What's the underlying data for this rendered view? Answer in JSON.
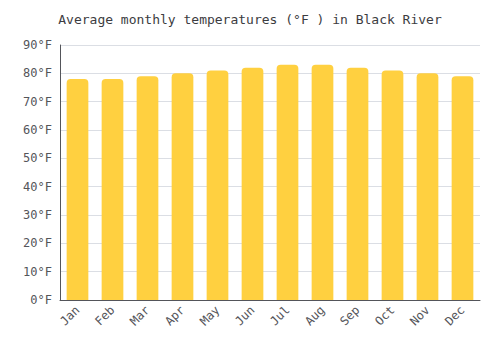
{
  "chart_data": {
    "type": "bar",
    "title": "Average monthly temperatures (°F ) in Black River",
    "categories": [
      "Jan",
      "Feb",
      "Mar",
      "Apr",
      "May",
      "Jun",
      "Jul",
      "Aug",
      "Sep",
      "Oct",
      "Nov",
      "Dec"
    ],
    "values": [
      78,
      78,
      79,
      80,
      81,
      82,
      83,
      83,
      82,
      81,
      80,
      79
    ],
    "color": "#FFD040",
    "ylim": [
      0,
      90
    ],
    "yticks": [
      {
        "value": 0,
        "label": "0°F"
      },
      {
        "value": 10,
        "label": "10°F"
      },
      {
        "value": 20,
        "label": "20°F"
      },
      {
        "value": 30,
        "label": "30°F"
      },
      {
        "value": 40,
        "label": "40°F"
      },
      {
        "value": 50,
        "label": "50°F"
      },
      {
        "value": 60,
        "label": "60°F"
      },
      {
        "value": 70,
        "label": "70°F"
      },
      {
        "value": 80,
        "label": "80°F"
      },
      {
        "value": 90,
        "label": "90°F"
      }
    ],
    "grid": true
  }
}
